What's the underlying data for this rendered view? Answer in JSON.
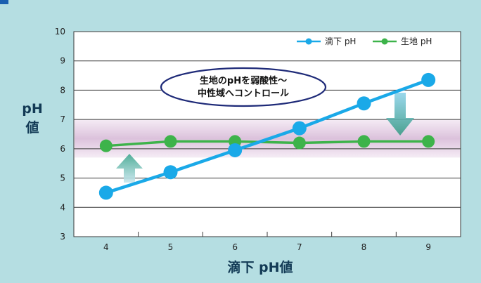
{
  "chart_data": {
    "type": "line",
    "title": "",
    "xlabel": "滴下 pH値",
    "ylabel": "pH\n値",
    "x": [
      4,
      5,
      6,
      7,
      8,
      9
    ],
    "xlim": [
      3.5,
      9.5
    ],
    "ylim": [
      3,
      10
    ],
    "yticks": [
      3,
      4,
      5,
      6,
      7,
      8,
      9,
      10
    ],
    "grid": true,
    "legend_position": "top-right",
    "band": {
      "from": 5.7,
      "to": 7.0,
      "color": "#e3cde3"
    },
    "annotation": "生地のpHを弱酸性〜\n中性域へコントロール",
    "series": [
      {
        "name": "滴下 pH",
        "color": "#1aa9e8",
        "values": [
          4.5,
          5.2,
          5.95,
          6.7,
          7.55,
          8.35
        ]
      },
      {
        "name": "生地 pH",
        "color": "#3db34a",
        "values": [
          6.1,
          6.25,
          6.25,
          6.2,
          6.25,
          6.25
        ]
      }
    ]
  }
}
